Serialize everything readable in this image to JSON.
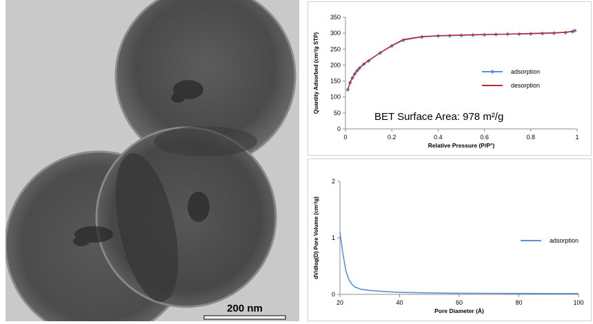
{
  "micrograph": {
    "scale_bar_label": "200 nm"
  },
  "chart_data": [
    {
      "type": "line",
      "xlabel": "Relative Pressure (P/P°)",
      "ylabel": "Quantity Adsorbed (cm³/g STP)",
      "xlim": [
        0,
        1
      ],
      "ylim": [
        0,
        350
      ],
      "x_ticks": [
        "0",
        "0.2",
        "0.4",
        "0.6",
        "0.8",
        "1"
      ],
      "y_ticks": [
        "0",
        "50",
        "100",
        "150",
        "200",
        "250",
        "300",
        "350"
      ],
      "annotation": "BET Surface Area:   978 m²/g",
      "legend_position": "right",
      "series": [
        {
          "name": "adsorption",
          "color": "#5b8fd0",
          "marker": "diamond",
          "x": [
            0.01,
            0.02,
            0.03,
            0.04,
            0.05,
            0.06,
            0.08,
            0.1,
            0.15,
            0.2,
            0.25,
            0.33,
            0.4,
            0.45,
            0.5,
            0.55,
            0.6,
            0.65,
            0.7,
            0.75,
            0.8,
            0.85,
            0.9,
            0.95,
            0.98,
            0.99
          ],
          "y": [
            123,
            145,
            160,
            172,
            182,
            190,
            203,
            213,
            238,
            260,
            278,
            288,
            291,
            292,
            293,
            294,
            295,
            296,
            297,
            297,
            298,
            299,
            300,
            302,
            305,
            308
          ]
        },
        {
          "name": "desorption",
          "color": "#c0262d",
          "x": [
            0.01,
            0.02,
            0.04,
            0.06,
            0.08,
            0.1,
            0.15,
            0.2,
            0.25,
            0.33,
            0.4,
            0.5,
            0.6,
            0.7,
            0.8,
            0.9,
            0.95,
            0.98,
            0.99
          ],
          "y": [
            123,
            146,
            173,
            191,
            204,
            214,
            239,
            261,
            280,
            289,
            292,
            294,
            296,
            297,
            299,
            301,
            303,
            306,
            309
          ]
        }
      ]
    },
    {
      "type": "line",
      "xlabel": "Pore Diameter (Å)",
      "ylabel": "dV/dlog(D) Pore Volume (cm³/g)",
      "xlim": [
        20,
        100
      ],
      "ylim": [
        0,
        2
      ],
      "x_ticks": [
        "20",
        "40",
        "60",
        "80",
        "100"
      ],
      "y_ticks": [
        "0",
        "1",
        "2"
      ],
      "legend_position": "right",
      "series": [
        {
          "name": "adsorption",
          "color": "#5b8fd0",
          "x": [
            20,
            21,
            22,
            23,
            24,
            25,
            27,
            30,
            35,
            40,
            50,
            60,
            70,
            80,
            90,
            100
          ],
          "y": [
            1.1,
            0.72,
            0.42,
            0.26,
            0.18,
            0.13,
            0.09,
            0.07,
            0.05,
            0.035,
            0.025,
            0.02,
            0.018,
            0.016,
            0.015,
            0.015
          ]
        }
      ]
    }
  ]
}
